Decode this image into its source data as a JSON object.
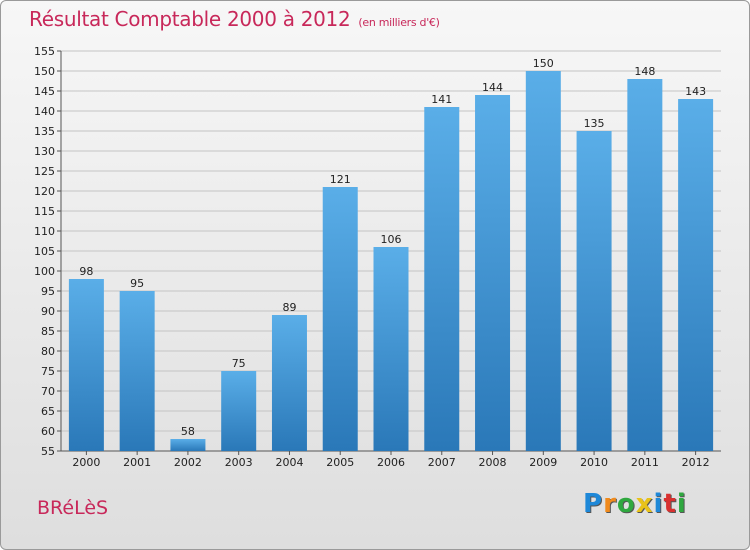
{
  "header": {
    "title": "Résultat Comptable 2000 à 2012",
    "subtitle": "(en milliers d'€)"
  },
  "footer": {
    "town": "BRéLèS",
    "logo": "Proxiti",
    "logo_colors": [
      "#1e88d8",
      "#f08a1c",
      "#2fa83f",
      "#e8c21a",
      "#1e88d8",
      "#d8302f",
      "#2fa83f"
    ]
  },
  "colors": {
    "accent": "#c8285a",
    "bar_top": "#5aaee8",
    "bar_bottom": "#2a78b8"
  },
  "chart_data": {
    "type": "bar",
    "title": "Résultat Comptable 2000 à 2012",
    "xlabel": "",
    "ylabel": "",
    "categories": [
      "2000",
      "2001",
      "2002",
      "2003",
      "2004",
      "2005",
      "2006",
      "2007",
      "2008",
      "2009",
      "2010",
      "2011",
      "2012"
    ],
    "values": [
      98,
      95,
      58,
      75,
      89,
      121,
      106,
      141,
      144,
      150,
      135,
      148,
      143
    ],
    "ylim": [
      55,
      155
    ],
    "ytick_step": 5,
    "grid": true
  }
}
